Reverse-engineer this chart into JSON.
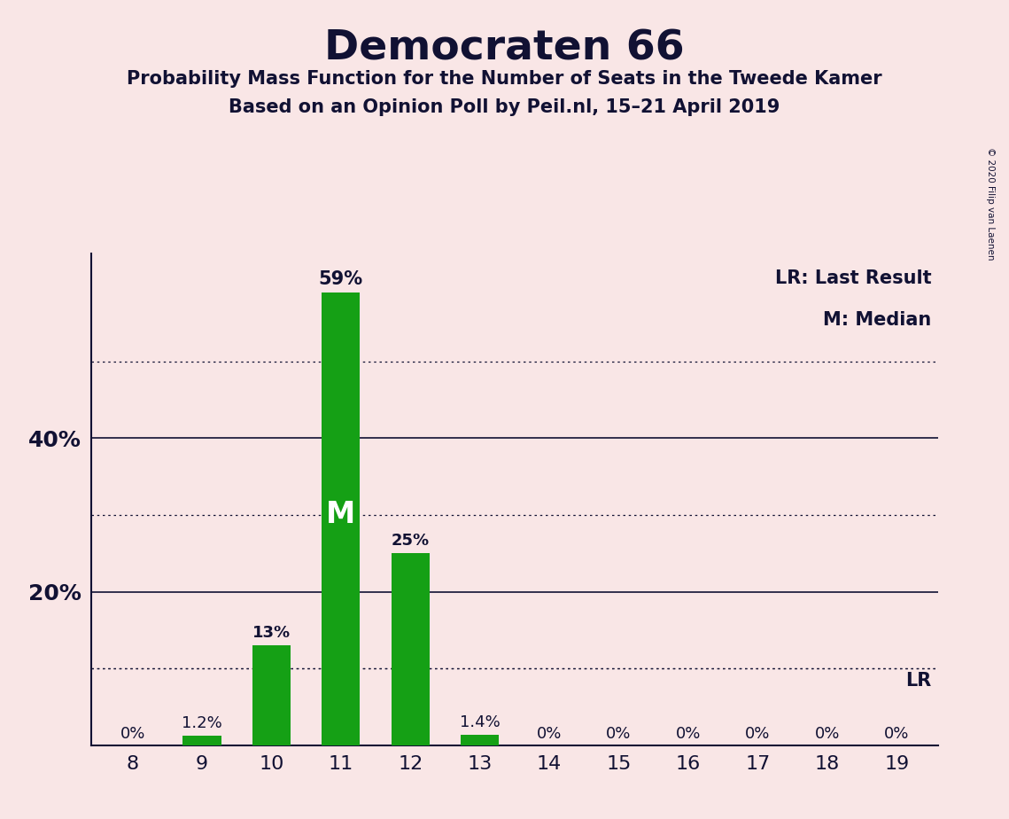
{
  "title": "Democraten 66",
  "subtitle1": "Probability Mass Function for the Number of Seats in the Tweede Kamer",
  "subtitle2": "Based on an Opinion Poll by Peil.nl, 15–21 April 2019",
  "copyright": "© 2020 Filip van Laenen",
  "categories": [
    8,
    9,
    10,
    11,
    12,
    13,
    14,
    15,
    16,
    17,
    18,
    19
  ],
  "values": [
    0.0,
    1.2,
    13.0,
    59.0,
    25.0,
    1.4,
    0.0,
    0.0,
    0.0,
    0.0,
    0.0,
    0.0
  ],
  "labels": [
    "0%",
    "1.2%",
    "13%",
    "59%",
    "25%",
    "1.4%",
    "0%",
    "0%",
    "0%",
    "0%",
    "0%",
    "0%"
  ],
  "bar_color": "#15a015",
  "background_color": "#f9e6e6",
  "median_idx": 3,
  "last_result_value": 10.0,
  "dotted_lines": [
    10,
    30,
    50
  ],
  "solid_lines": [
    20,
    40
  ],
  "ylim": [
    0,
    64
  ],
  "legend_lr": "LR: Last Result",
  "legend_m": "M: Median",
  "text_color": "#111133"
}
